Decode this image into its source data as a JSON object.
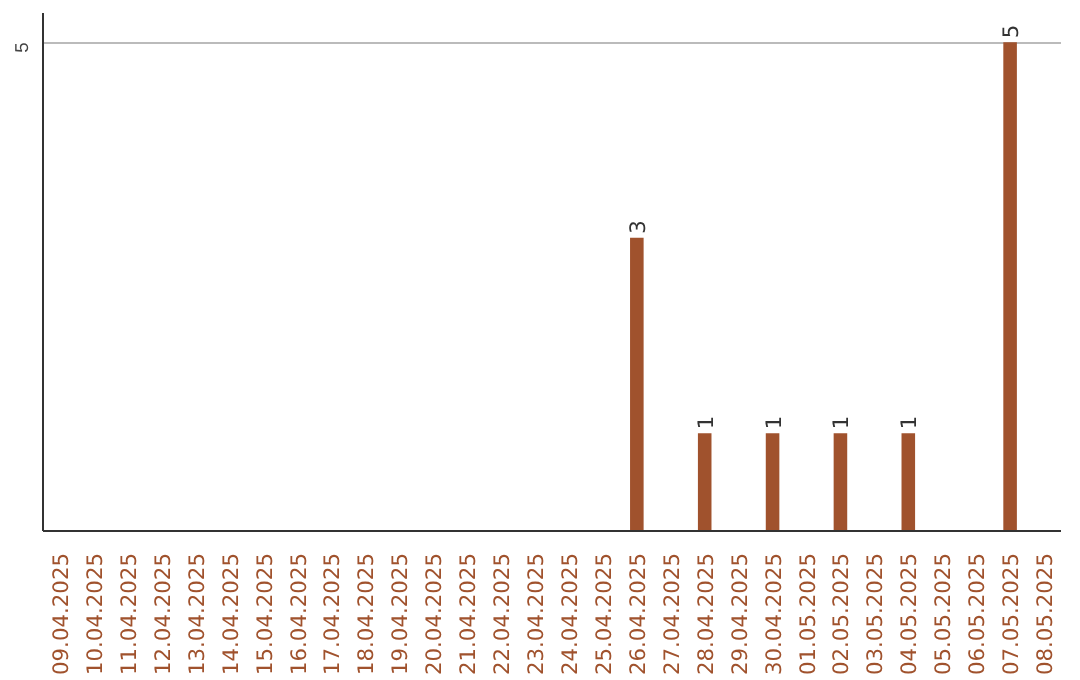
{
  "chart_data": {
    "type": "bar",
    "categories": [
      "09.04.2025",
      "10.04.2025",
      "11.04.2025",
      "12.04.2025",
      "13.04.2025",
      "14.04.2025",
      "15.04.2025",
      "16.04.2025",
      "17.04.2025",
      "18.04.2025",
      "19.04.2025",
      "20.04.2025",
      "21.04.2025",
      "22.04.2025",
      "23.04.2025",
      "24.04.2025",
      "25.04.2025",
      "26.04.2025",
      "27.04.2025",
      "28.04.2025",
      "29.04.2025",
      "30.04.2025",
      "01.05.2025",
      "02.05.2025",
      "03.05.2025",
      "04.05.2025",
      "05.05.2025",
      "06.05.2025",
      "07.05.2025",
      "08.05.2025"
    ],
    "values": [
      null,
      null,
      null,
      null,
      null,
      null,
      null,
      null,
      null,
      null,
      null,
      null,
      null,
      null,
      null,
      null,
      null,
      3,
      null,
      1,
      null,
      1,
      null,
      1,
      null,
      1,
      null,
      null,
      5,
      null
    ],
    "data_labels": true,
    "color": "#a0522d",
    "ylim": [
      0,
      5.3
    ],
    "yticks": [
      5
    ],
    "grid": "y"
  }
}
